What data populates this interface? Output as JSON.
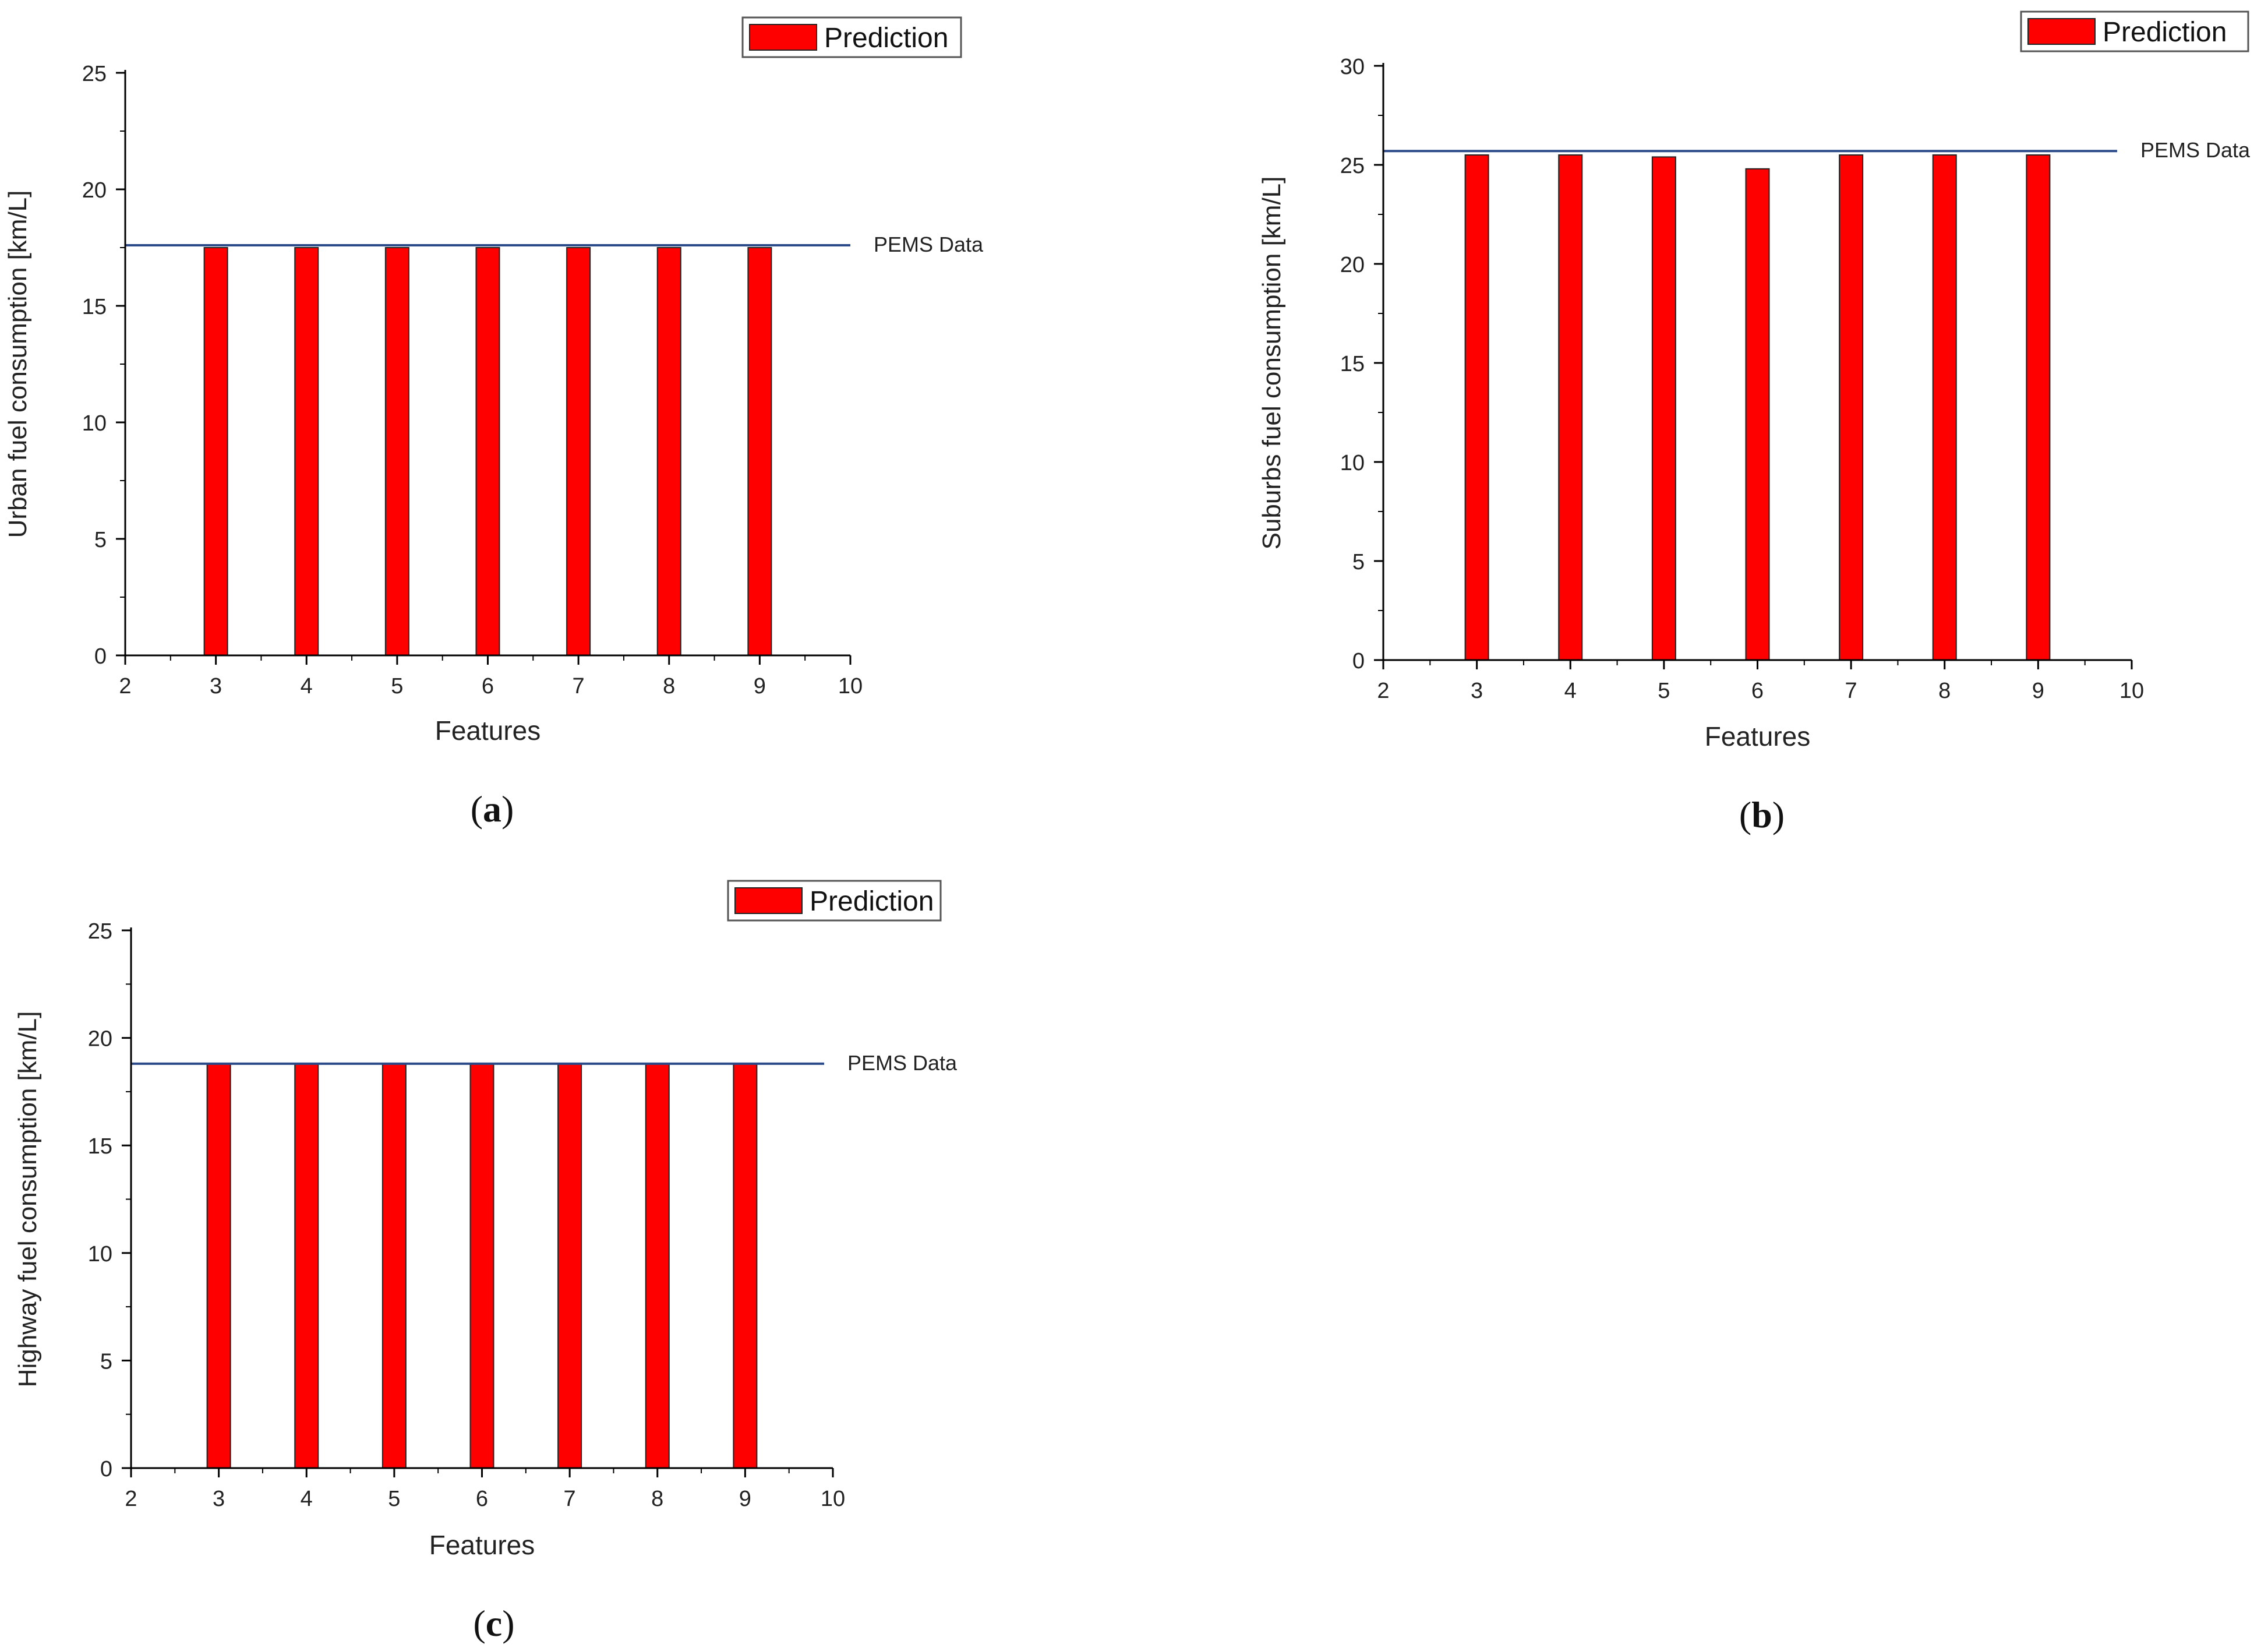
{
  "legend_label": "Prediction",
  "reference_label": "PEMS Data",
  "colors": {
    "bar": "#ff0000",
    "bar_stroke": "#222222",
    "reference_line": "#2b4a8a",
    "axis": "#000000"
  },
  "chart_data": [
    {
      "id": "a",
      "type": "bar",
      "panel_label": "a",
      "xlabel": "Features",
      "ylabel": "Urban fuel consumption [km/L]",
      "xlim": [
        2,
        10
      ],
      "ylim": [
        0,
        25
      ],
      "xticks": [
        2,
        3,
        4,
        5,
        6,
        7,
        8,
        9,
        10
      ],
      "yticks": [
        0,
        5,
        10,
        15,
        20,
        25
      ],
      "series": [
        {
          "name": "Prediction",
          "x": [
            3,
            4,
            5,
            6,
            7,
            8,
            9
          ],
          "values": [
            17.5,
            17.5,
            17.5,
            17.5,
            17.5,
            17.5,
            17.5
          ]
        }
      ],
      "reference": {
        "name": "PEMS Data",
        "value": 17.6
      },
      "legend_position": "top-right"
    },
    {
      "id": "b",
      "type": "bar",
      "panel_label": "b",
      "xlabel": "Features",
      "ylabel": "Suburbs fuel consumption [km/L]",
      "xlim": [
        2,
        10
      ],
      "ylim": [
        0,
        30
      ],
      "xticks": [
        2,
        3,
        4,
        5,
        6,
        7,
        8,
        9,
        10
      ],
      "yticks": [
        0,
        5,
        10,
        15,
        20,
        25,
        30
      ],
      "series": [
        {
          "name": "Prediction",
          "x": [
            3,
            4,
            5,
            6,
            7,
            8,
            9
          ],
          "values": [
            25.5,
            25.5,
            25.4,
            24.8,
            25.5,
            25.5,
            25.5
          ]
        }
      ],
      "reference": {
        "name": "PEMS Data",
        "value": 25.7
      },
      "legend_position": "top-right"
    },
    {
      "id": "c",
      "type": "bar",
      "panel_label": "c",
      "xlabel": "Features",
      "ylabel": "Highway fuel consumption [km/L]",
      "xlim": [
        2,
        10
      ],
      "ylim": [
        0,
        25
      ],
      "xticks": [
        2,
        3,
        4,
        5,
        6,
        7,
        8,
        9,
        10
      ],
      "yticks": [
        0,
        5,
        10,
        15,
        20,
        25
      ],
      "series": [
        {
          "name": "Prediction",
          "x": [
            3,
            4,
            5,
            6,
            7,
            8,
            9
          ],
          "values": [
            18.8,
            18.8,
            18.8,
            18.8,
            18.8,
            18.8,
            18.8
          ]
        }
      ],
      "reference": {
        "name": "PEMS Data",
        "value": 18.8
      },
      "legend_position": "top-right"
    }
  ]
}
